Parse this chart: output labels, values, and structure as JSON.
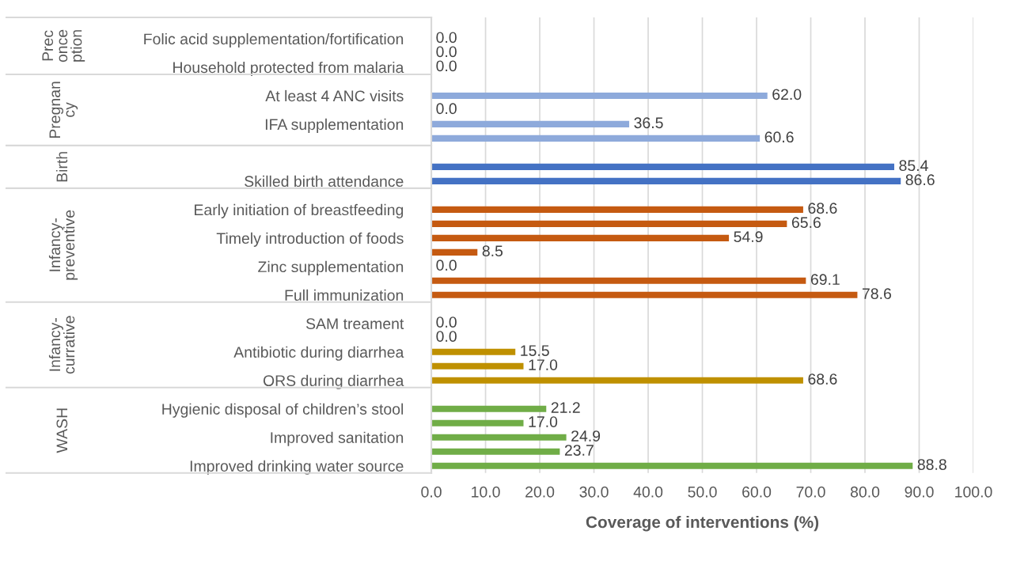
{
  "chart_data": {
    "type": "bar",
    "orientation": "horizontal",
    "xlabel": "Coverage of interventions (%)",
    "categories": [
      null,
      "Folic acid supplementation/fortification",
      null,
      "Household protected from malaria",
      null,
      "At least 4 ANC visits",
      null,
      "IFA supplementation",
      null,
      null,
      null,
      "Skilled birth attendance",
      null,
      "Early initiation of breastfeeding",
      null,
      "Timely introduction of foods",
      null,
      "Zinc supplementation",
      null,
      "Full immunization",
      null,
      "SAM treament",
      null,
      "Antibiotic during diarrhea",
      null,
      "ORS during diarrhea",
      null,
      "Hygienic disposal of children’s stool",
      null,
      "Improved sanitation",
      null,
      "Improved drinking water source"
    ],
    "values": [
      null,
      0.0,
      0.0,
      0.0,
      null,
      62.0,
      0.0,
      36.5,
      60.6,
      null,
      85.4,
      86.6,
      null,
      68.6,
      65.6,
      54.9,
      8.5,
      0.0,
      69.1,
      78.6,
      null,
      0.0,
      0.0,
      15.5,
      17.0,
      68.6,
      null,
      21.2,
      17.0,
      24.9,
      23.7,
      88.8
    ],
    "colors": [
      null,
      "#8eaadb",
      "#8eaadb",
      "#8eaadb",
      null,
      "#8eaadb",
      "#8eaadb",
      "#8eaadb",
      "#8eaadb",
      null,
      "#4472c4",
      "#4472c4",
      null,
      "#c55a11",
      "#c55a11",
      "#c55a11",
      "#c55a11",
      "#c55a11",
      "#c55a11",
      "#c55a11",
      null,
      "#bf9000",
      "#bf9000",
      "#bf9000",
      "#bf9000",
      "#bf9000",
      null,
      "#70ad47",
      "#70ad47",
      "#70ad47",
      "#70ad47",
      "#70ad47"
    ],
    "value_labels": [
      null,
      "0.0",
      "0.0",
      "0.0",
      null,
      "62.0",
      "0.0",
      "36.5",
      "60.6",
      null,
      "85.4",
      "86.6",
      null,
      "68.6",
      "65.6",
      "54.9",
      "8.5",
      "0.0",
      "69.1",
      "78.6",
      null,
      "0.0",
      "0.0",
      "15.5",
      "17.0",
      "68.6",
      null,
      "21.2",
      "17.0",
      "24.9",
      "23.7",
      "88.8"
    ],
    "annotations": [
      "Prec\nonce\nption",
      "Pregnan\ncy",
      "Birth",
      "Infancy-\npreventive",
      "Infancy-\ncurrative",
      "WASH"
    ],
    "xlim": [
      0,
      100
    ],
    "xticks": [
      {
        "value": 0,
        "label": "0.0"
      },
      {
        "value": 10,
        "label": "10.0"
      },
      {
        "value": 20,
        "label": "20.0"
      },
      {
        "value": 30,
        "label": "30.0"
      },
      {
        "value": 40,
        "label": "40.0"
      },
      {
        "value": 50,
        "label": "50.0"
      },
      {
        "value": 60,
        "label": "60.0"
      },
      {
        "value": 70,
        "label": "70.0"
      },
      {
        "value": 80,
        "label": "80.0"
      },
      {
        "value": 90,
        "label": "90.0"
      },
      {
        "value": 100,
        "label": "100.0"
      }
    ],
    "grid": "x"
  }
}
